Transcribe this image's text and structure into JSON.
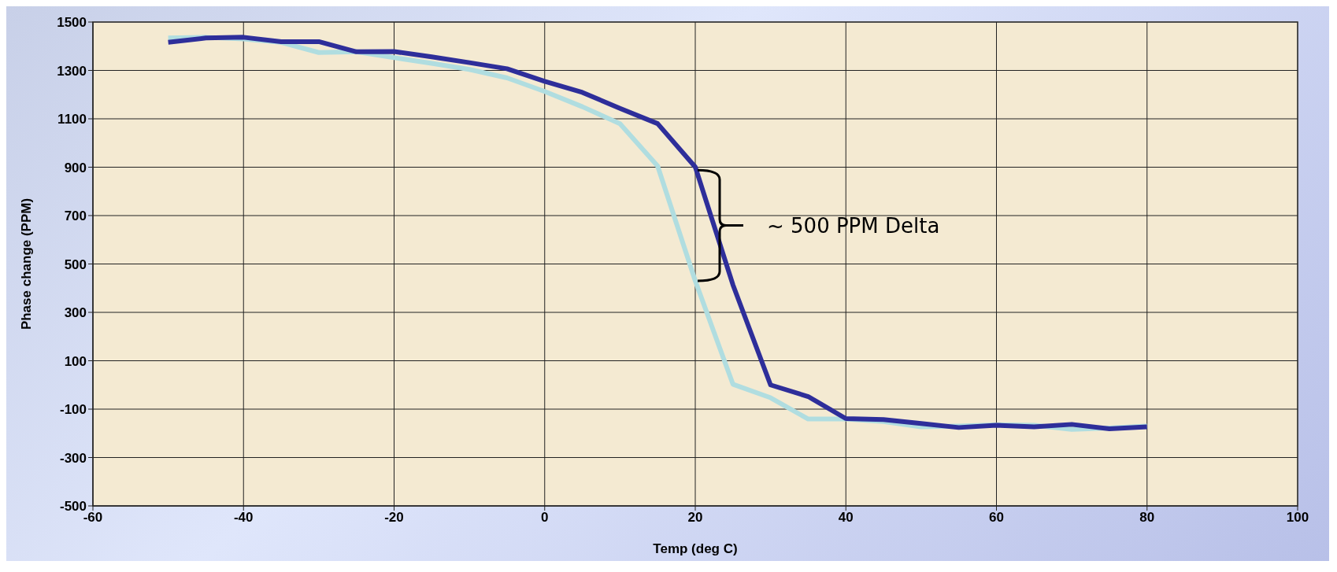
{
  "chart_data": {
    "type": "line",
    "xlabel": "Temp (deg C)",
    "ylabel": "Phase change (PPM)",
    "x": [
      -50,
      -45,
      -40,
      -35,
      -30,
      -25,
      -20,
      -15,
      -10,
      -5,
      0,
      5,
      10,
      15,
      20,
      25,
      30,
      35,
      40,
      45,
      50,
      55,
      60,
      65,
      70,
      75,
      80
    ],
    "series": [
      {
        "color": "#b0dde0",
        "values": [
          1434,
          1437,
          1430,
          1416,
          1374,
          1377,
          1353,
          1329,
          1304,
          1269,
          1213,
          1150,
          1080,
          905,
          430,
          3,
          -53,
          -141,
          -141,
          -151,
          -173,
          -170,
          -165,
          -167,
          -184,
          -178,
          -170
        ]
      },
      {
        "color": "#2e2e9a",
        "values": [
          1416,
          1434,
          1437,
          1419,
          1419,
          1377,
          1378,
          1356,
          1332,
          1307,
          1255,
          1209,
          1143,
          1080,
          901,
          414,
          0,
          -48,
          -139,
          -143,
          -159,
          -176,
          -167,
          -173,
          -163,
          -181,
          -173
        ]
      }
    ],
    "xlim": [
      -60,
      100
    ],
    "xticks": [
      -60,
      -40,
      -20,
      0,
      20,
      40,
      60,
      80,
      100
    ],
    "ylim": [
      -500,
      1500
    ],
    "yticks": [
      -500,
      -300,
      -100,
      100,
      300,
      500,
      700,
      900,
      1100,
      1300,
      1500
    ],
    "grid": true,
    "marker": "none",
    "line_style": "solid",
    "annotations": [
      {
        "text": "~ 500 PPM Delta",
        "x": 20,
        "y": 901
      }
    ]
  }
}
